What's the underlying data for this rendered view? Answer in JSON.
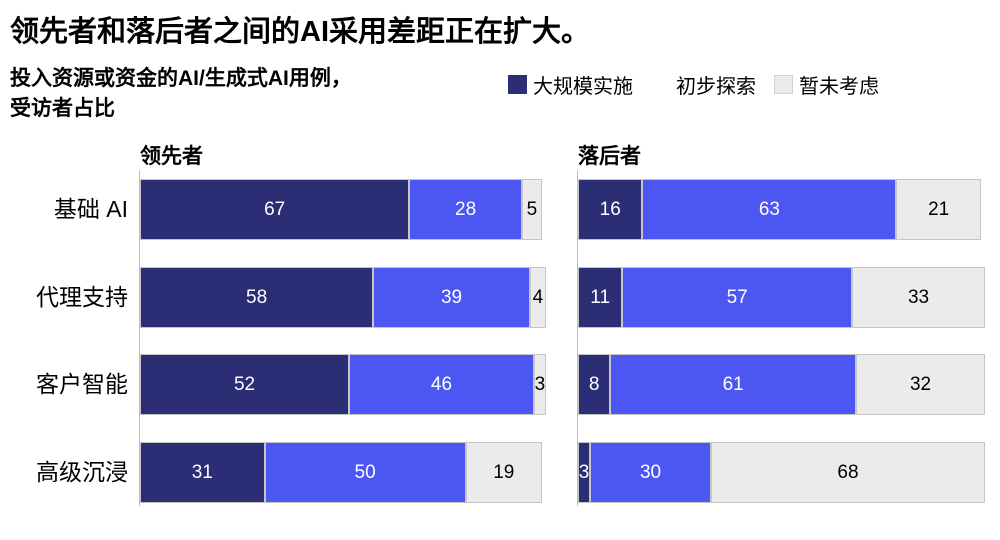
{
  "page": {
    "title": "领先者和落后者之间的AI采用差距正在扩大。",
    "subtitle_line1": "投入资源或资金的AI/生成式AI用例，",
    "subtitle_line2": "受访者占比"
  },
  "legend": {
    "items": [
      {
        "label": "大规模实施",
        "swatch_color": "#2b2e74",
        "swatch_border": "#2b2e74"
      },
      {
        "label": "初步探索",
        "swatch_color": "#ffffff",
        "swatch_border": "#ffffff"
      },
      {
        "label": "暂未考虑",
        "swatch_color": "#ebebeb",
        "swatch_border": "#d2d2d2"
      }
    ]
  },
  "chart_data": {
    "type": "bar",
    "orientation": "horizontal",
    "stacked": true,
    "unit": "percent",
    "xlim": [
      0,
      100
    ],
    "grid": false,
    "categories": [
      "基础 AI",
      "代理支持",
      "客户智能",
      "高级沉浸"
    ],
    "series_names": [
      "大规模实施",
      "初步探索",
      "暂未考虑"
    ],
    "series_colors": [
      "#2b2e74",
      "#4c56f2",
      "#ebebeb"
    ],
    "label_colors": [
      "#ffffff",
      "#ffffff",
      "#000000"
    ],
    "panels": [
      {
        "title": "领先者",
        "series": [
          {
            "name": "大规模实施",
            "values": [
              67,
              58,
              52,
              31
            ]
          },
          {
            "name": "初步探索",
            "values": [
              28,
              39,
              46,
              50
            ]
          },
          {
            "name": "暂未考虑",
            "values": [
              5,
              4,
              3,
              19
            ]
          }
        ]
      },
      {
        "title": "落后者",
        "series": [
          {
            "name": "大规模实施",
            "values": [
              16,
              11,
              8,
              3
            ]
          },
          {
            "name": "初步探索",
            "values": [
              63,
              57,
              61,
              30
            ]
          },
          {
            "name": "暂未考虑",
            "values": [
              21,
              33,
              32,
              68
            ]
          }
        ]
      }
    ]
  }
}
